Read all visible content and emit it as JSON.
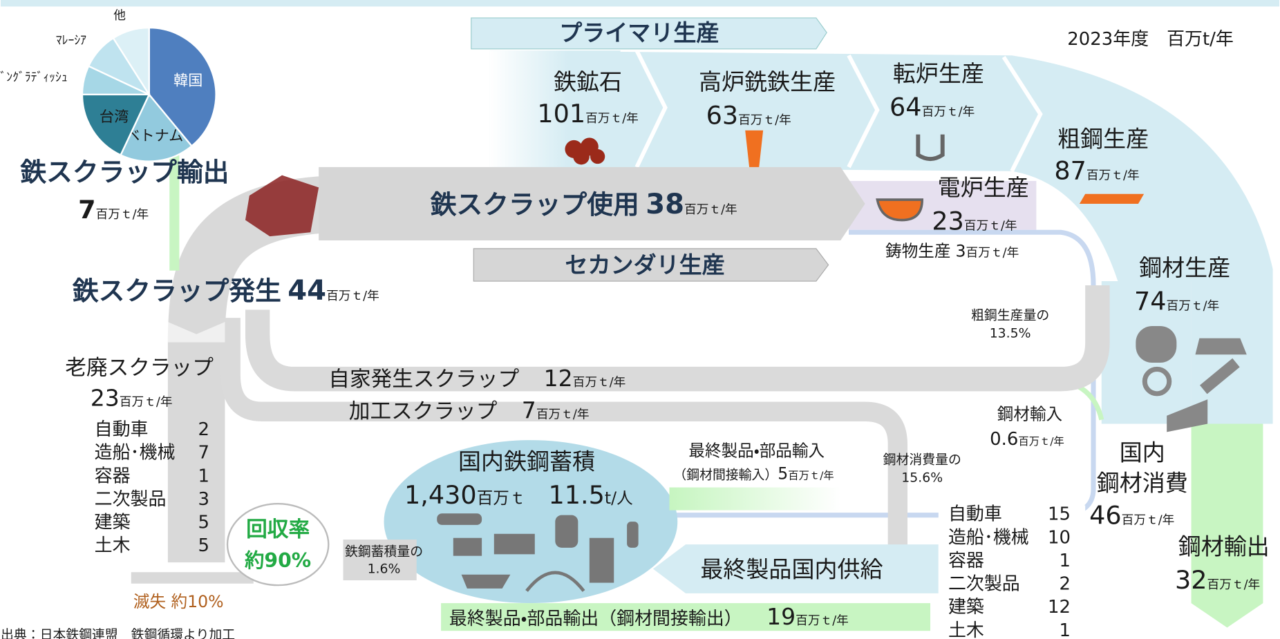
{
  "header": {
    "year_unit": "2023年度　百万t/年"
  },
  "unit": "百万ｔ/年",
  "banners": {
    "primary": "プライマリ生産",
    "secondary": "セカンダリ生産"
  },
  "nodes": [
    {
      "label": "鉄鉱石",
      "value": "101"
    },
    {
      "label": "高炉銑鉄生産",
      "value": "63"
    },
    {
      "label": "転炉生産",
      "value": "64"
    },
    {
      "label": "粗鋼生産",
      "value": "87"
    },
    {
      "label": "電炉生産",
      "value": "23"
    },
    {
      "label": "鋼材生産",
      "value": "74"
    },
    {
      "label": "鉄スクラップ輸出",
      "value": "7"
    },
    {
      "label": "老廃スクラップ",
      "value": "23"
    },
    {
      "label": [
        "国内",
        "鋼材消費"
      ],
      "value": "46"
    },
    {
      "label": "鋼材輸出",
      "value": "32"
    }
  ],
  "scrap_use": {
    "label": "鉄スクラップ使用",
    "value": "38"
  },
  "scrap_generation": {
    "label": "鉄スクラップ発生",
    "value": "44"
  },
  "casting": {
    "label": "鋳物生産",
    "value": "3"
  },
  "self_scrap": {
    "label": "自家発生スクラップ",
    "value": "12"
  },
  "process_scrap": {
    "label": "加工スクラップ",
    "value": "7"
  },
  "steel_import": {
    "label": "鋼材輸入",
    "value": "0.6"
  },
  "stock": {
    "label": "国内鉄鋼蓄積",
    "total": "1,430",
    "total_unit": "百万ｔ",
    "per_capita": "11.5",
    "per_capita_unit": "t/人"
  },
  "final_import": {
    "label": "最終製品・部品輸入",
    "sub": "（鋼材間接輸入）",
    "value": "5"
  },
  "final_export": {
    "label": "最終製品・部品輸出（鋼材間接輸出）",
    "value": "19"
  },
  "domestic_supply": "最終製品国内供給",
  "recovery": {
    "label": "回収率",
    "value": "約90%"
  },
  "loss": "滅失 約10%",
  "ratios": [
    {
      "label": "粗鋼生産量の",
      "value": "13.5%"
    },
    {
      "label": "鋼材消費量の",
      "value": "15.6%"
    },
    {
      "label": "鉄鋼蓄積量の",
      "value": "1.6%"
    }
  ],
  "old_scrap_breakdown": [
    {
      "label": "自動車",
      "value": "2"
    },
    {
      "label": "造船･機械",
      "value": "7"
    },
    {
      "label": "容器",
      "value": "1"
    },
    {
      "label": "二次製品",
      "value": "3"
    },
    {
      "label": "建築",
      "value": "5"
    },
    {
      "label": "土木",
      "value": "5"
    }
  ],
  "consumption_breakdown": [
    {
      "label": "自動車",
      "value": "15"
    },
    {
      "label": "造船･機械",
      "value": "10"
    },
    {
      "label": "容器",
      "value": "1"
    },
    {
      "label": "二次製品",
      "value": "2"
    },
    {
      "label": "建築",
      "value": "12"
    },
    {
      "label": "土木",
      "value": "1"
    }
  ],
  "source": "出典：日本鉄鋼連盟　鉄鋼循環より加工",
  "chart_data": {
    "type": "pie",
    "categories": [
      "韓国",
      "ベトナム",
      "台湾",
      "ﾊﾞﾝｸﾞﾗﾃﾞｨｯｼｭ",
      "ﾏﾚｰｼｱ",
      "他"
    ],
    "values": [
      39,
      18,
      18,
      7,
      9,
      9
    ],
    "colors": [
      "#4f7fbf",
      "#92cade",
      "#2e7f95",
      "#a6d7e6",
      "#bfe3ef",
      "#dcf0f6"
    ]
  }
}
